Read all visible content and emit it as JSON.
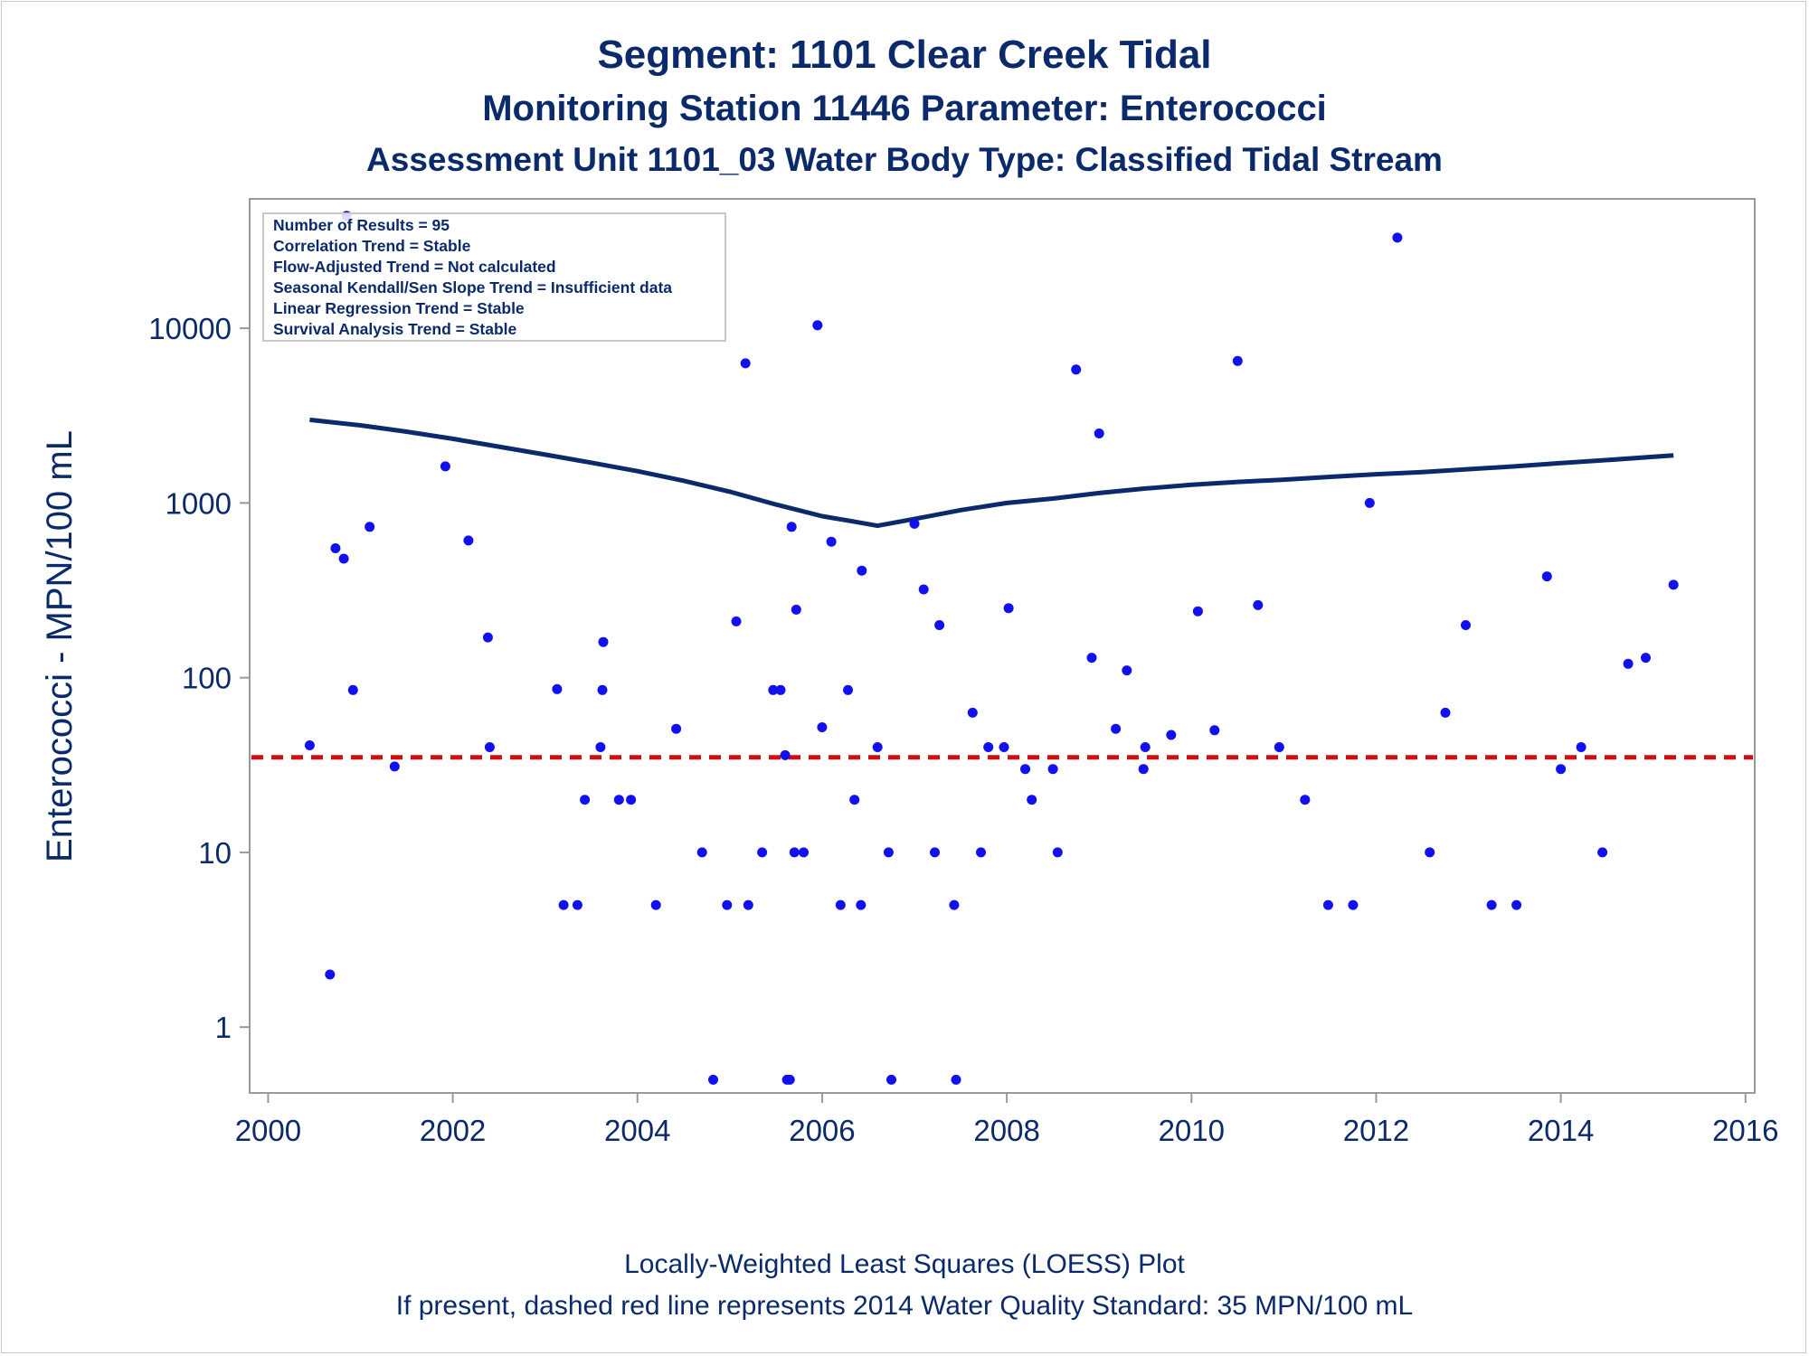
{
  "title_lines": {
    "line1": "Segment: 1101  Clear Creek Tidal",
    "line2": "Monitoring Station 11446 Parameter: Enterococci",
    "line3": "Assessment Unit 1101_03   Water Body Type: Classified Tidal Stream"
  },
  "footer": {
    "line1": "Locally-Weighted Least Squares (LOESS) Plot",
    "line2": "If present, dashed red line represents 2014 Water Quality Standard: 35 MPN/100 mL"
  },
  "stats_box": [
    "Number of Results = 95",
    "Correlation Trend = Stable",
    "Flow-Adjusted Trend = Not calculated",
    "Seasonal Kendall/Sen Slope Trend = Insufficient data",
    "Linear Regression Trend = Stable",
    "Survival Analysis Trend = Stable"
  ],
  "colors": {
    "text": "#0b2a6b",
    "points": "#1010f0",
    "loess": "#0b2a6b",
    "standard_line": "#d01010",
    "axis": "#999999"
  },
  "chart_data": {
    "type": "scatter",
    "xlabel": "",
    "ylabel": "Enterococci - MPN/100 mL",
    "yscale": "log",
    "xlim": [
      1999.8,
      2016.1
    ],
    "ylim": [
      0.42,
      55000
    ],
    "x_ticks": [
      2000,
      2002,
      2004,
      2006,
      2008,
      2010,
      2012,
      2014,
      2016
    ],
    "y_ticks": [
      1,
      10,
      100,
      1000,
      10000
    ],
    "grid": false,
    "standard_line": {
      "value": 35,
      "style": "dashed"
    },
    "points": [
      {
        "x": 2000.45,
        "y": 41
      },
      {
        "x": 2000.67,
        "y": 2
      },
      {
        "x": 2000.73,
        "y": 550
      },
      {
        "x": 2000.82,
        "y": 480
      },
      {
        "x": 2000.85,
        "y": 44000
      },
      {
        "x": 2000.92,
        "y": 85
      },
      {
        "x": 2001.1,
        "y": 730
      },
      {
        "x": 2001.37,
        "y": 31
      },
      {
        "x": 2001.92,
        "y": 1620
      },
      {
        "x": 2002.17,
        "y": 610
      },
      {
        "x": 2002.38,
        "y": 170
      },
      {
        "x": 2002.4,
        "y": 40
      },
      {
        "x": 2003.13,
        "y": 86
      },
      {
        "x": 2003.2,
        "y": 5
      },
      {
        "x": 2003.35,
        "y": 5
      },
      {
        "x": 2003.43,
        "y": 20
      },
      {
        "x": 2003.6,
        "y": 40
      },
      {
        "x": 2003.62,
        "y": 85
      },
      {
        "x": 2003.63,
        "y": 160
      },
      {
        "x": 2003.8,
        "y": 20
      },
      {
        "x": 2003.93,
        "y": 20
      },
      {
        "x": 2004.2,
        "y": 5
      },
      {
        "x": 2004.42,
        "y": 51
      },
      {
        "x": 2004.7,
        "y": 10
      },
      {
        "x": 2004.82,
        "y": 0.5
      },
      {
        "x": 2004.97,
        "y": 5
      },
      {
        "x": 2005.07,
        "y": 210
      },
      {
        "x": 2005.17,
        "y": 6300
      },
      {
        "x": 2005.2,
        "y": 5
      },
      {
        "x": 2005.35,
        "y": 10
      },
      {
        "x": 2005.47,
        "y": 85
      },
      {
        "x": 2005.55,
        "y": 85
      },
      {
        "x": 2005.6,
        "y": 36
      },
      {
        "x": 2005.62,
        "y": 0.5
      },
      {
        "x": 2005.65,
        "y": 0.5
      },
      {
        "x": 2005.67,
        "y": 730
      },
      {
        "x": 2005.7,
        "y": 10
      },
      {
        "x": 2005.72,
        "y": 245
      },
      {
        "x": 2005.8,
        "y": 10
      },
      {
        "x": 2005.95,
        "y": 10400
      },
      {
        "x": 2006.0,
        "y": 52
      },
      {
        "x": 2006.1,
        "y": 600
      },
      {
        "x": 2006.2,
        "y": 5
      },
      {
        "x": 2006.28,
        "y": 85
      },
      {
        "x": 2006.35,
        "y": 20
      },
      {
        "x": 2006.42,
        "y": 5
      },
      {
        "x": 2006.43,
        "y": 410
      },
      {
        "x": 2006.6,
        "y": 40
      },
      {
        "x": 2006.72,
        "y": 10
      },
      {
        "x": 2006.75,
        "y": 0.5
      },
      {
        "x": 2007.0,
        "y": 760
      },
      {
        "x": 2007.1,
        "y": 320
      },
      {
        "x": 2007.22,
        "y": 10
      },
      {
        "x": 2007.27,
        "y": 200
      },
      {
        "x": 2007.43,
        "y": 5
      },
      {
        "x": 2007.45,
        "y": 0.5
      },
      {
        "x": 2007.63,
        "y": 63
      },
      {
        "x": 2007.72,
        "y": 10
      },
      {
        "x": 2007.8,
        "y": 40
      },
      {
        "x": 2007.97,
        "y": 40
      },
      {
        "x": 2008.02,
        "y": 250
      },
      {
        "x": 2008.2,
        "y": 30
      },
      {
        "x": 2008.27,
        "y": 20
      },
      {
        "x": 2008.5,
        "y": 30
      },
      {
        "x": 2008.55,
        "y": 10
      },
      {
        "x": 2008.75,
        "y": 5800
      },
      {
        "x": 2008.92,
        "y": 130
      },
      {
        "x": 2009.0,
        "y": 2500
      },
      {
        "x": 2009.18,
        "y": 51
      },
      {
        "x": 2009.3,
        "y": 110
      },
      {
        "x": 2009.48,
        "y": 30
      },
      {
        "x": 2009.5,
        "y": 40
      },
      {
        "x": 2009.78,
        "y": 47
      },
      {
        "x": 2010.07,
        "y": 240
      },
      {
        "x": 2010.25,
        "y": 50
      },
      {
        "x": 2010.5,
        "y": 6500
      },
      {
        "x": 2010.72,
        "y": 260
      },
      {
        "x": 2010.95,
        "y": 40
      },
      {
        "x": 2011.23,
        "y": 20
      },
      {
        "x": 2011.48,
        "y": 5
      },
      {
        "x": 2011.75,
        "y": 5
      },
      {
        "x": 2011.93,
        "y": 1000
      },
      {
        "x": 2012.23,
        "y": 33000
      },
      {
        "x": 2012.58,
        "y": 10
      },
      {
        "x": 2012.75,
        "y": 63
      },
      {
        "x": 2012.97,
        "y": 200
      },
      {
        "x": 2013.25,
        "y": 5
      },
      {
        "x": 2013.52,
        "y": 5
      },
      {
        "x": 2013.85,
        "y": 380
      },
      {
        "x": 2014.0,
        "y": 30
      },
      {
        "x": 2014.22,
        "y": 40
      },
      {
        "x": 2014.45,
        "y": 10
      },
      {
        "x": 2014.73,
        "y": 120
      },
      {
        "x": 2014.92,
        "y": 130
      },
      {
        "x": 2015.22,
        "y": 340
      }
    ],
    "loess": {
      "name": "",
      "x": [
        2000.45,
        2001.0,
        2001.5,
        2002.0,
        2002.5,
        2003.0,
        2003.5,
        2004.0,
        2004.5,
        2005.0,
        2005.5,
        2006.0,
        2006.3,
        2006.6,
        2007.0,
        2007.5,
        2008.0,
        2008.5,
        2009.0,
        2009.5,
        2010.0,
        2010.5,
        2011.0,
        2011.5,
        2012.0,
        2012.5,
        2013.0,
        2013.5,
        2014.0,
        2014.5,
        2015.22
      ],
      "y": [
        2990,
        2780,
        2560,
        2330,
        2100,
        1890,
        1700,
        1520,
        1340,
        1160,
        980,
        840,
        790,
        740,
        810,
        910,
        1000,
        1060,
        1140,
        1210,
        1270,
        1320,
        1360,
        1410,
        1460,
        1500,
        1560,
        1620,
        1690,
        1760,
        1870
      ]
    }
  }
}
